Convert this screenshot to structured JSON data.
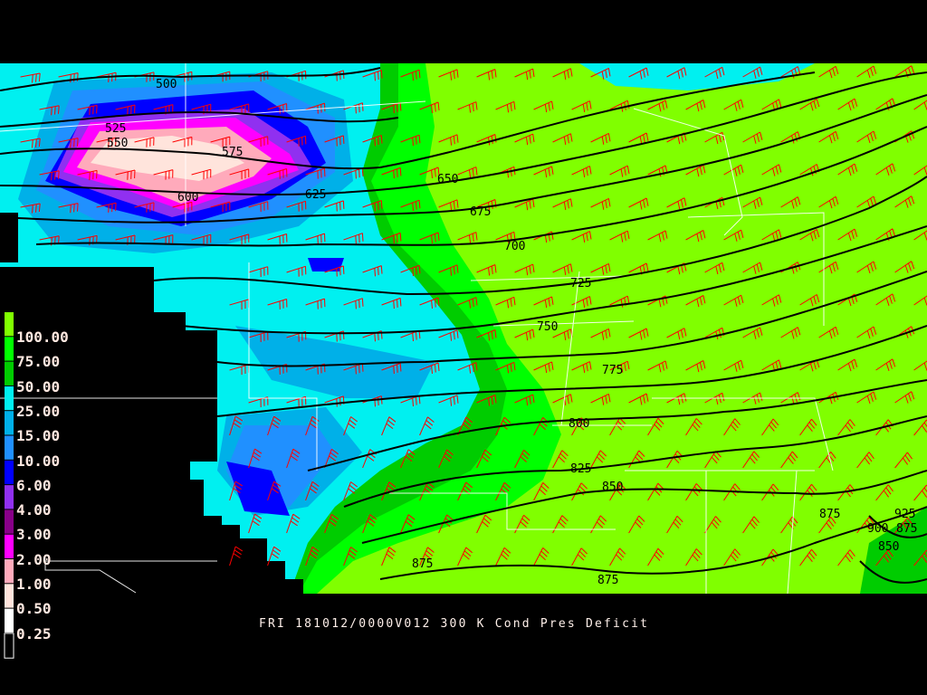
{
  "caption": "FRI 181012/0000V012 300 K Cond Pres Deficit",
  "legend": {
    "items": [
      {
        "label": "100.00",
        "color": "#80ff00"
      },
      {
        "label": "75.00",
        "color": "#00ff00"
      },
      {
        "label": "50.00",
        "color": "#00cc00"
      },
      {
        "label": "25.00",
        "color": "#00f0f0"
      },
      {
        "label": "15.00",
        "color": "#00b0e8"
      },
      {
        "label": "10.00",
        "color": "#2090ff"
      },
      {
        "label": "6.00",
        "color": "#0000ff"
      },
      {
        "label": "4.00",
        "color": "#9030f0"
      },
      {
        "label": "3.00",
        "color": "#880088"
      },
      {
        "label": "2.00",
        "color": "#ff00ff"
      },
      {
        "label": "1.00",
        "color": "#ffaabb"
      },
      {
        "label": "0.50",
        "color": "#ffe4dc"
      },
      {
        "label": "0.25",
        "color": "#ffffff"
      }
    ],
    "below_color": "#000000"
  },
  "contour_labels": [
    "500",
    "525",
    "550",
    "575",
    "600",
    "625",
    "650",
    "675",
    "700",
    "725",
    "750",
    "775",
    "800",
    "825",
    "850",
    "875",
    "875",
    "875",
    "900",
    "925",
    "875",
    "850"
  ],
  "colors": {
    "contour": "#000000",
    "wind_barbs": "#ff0000",
    "boundaries": "#ffffff",
    "background": "#000000"
  }
}
